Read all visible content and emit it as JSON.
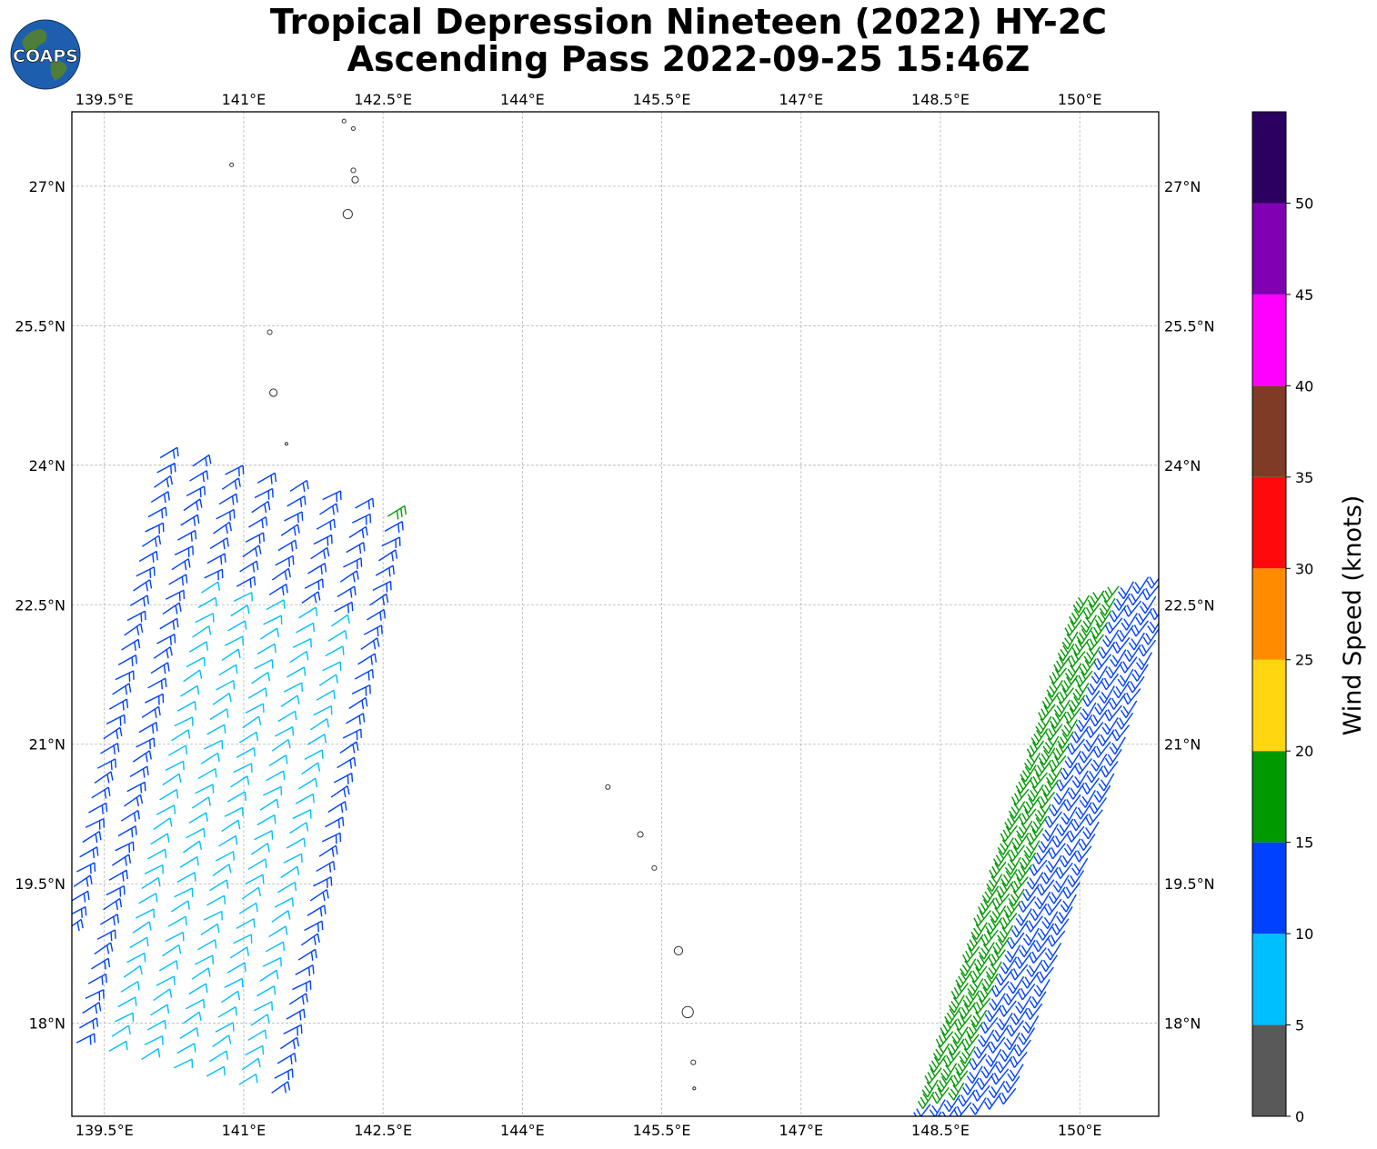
{
  "title": {
    "line1": "Tropical Depression Nineteen (2022) HY-2C",
    "line2": "Ascending Pass 2022-09-25 15:46Z"
  },
  "logo": {
    "text": "COAPS",
    "ocean_color": "#1d5fae",
    "land_color": "#4f7d3a"
  },
  "map": {
    "lon_range": [
      139.15,
      150.85
    ],
    "lat_range": [
      17.0,
      27.8
    ],
    "lon_ticks": [
      {
        "value": 139.5,
        "label": "139.5°E"
      },
      {
        "value": 141.0,
        "label": "141°E"
      },
      {
        "value": 142.5,
        "label": "142.5°E"
      },
      {
        "value": 144.0,
        "label": "144°E"
      },
      {
        "value": 145.5,
        "label": "145.5°E"
      },
      {
        "value": 147.0,
        "label": "147°E"
      },
      {
        "value": 148.5,
        "label": "148.5°E"
      },
      {
        "value": 150.0,
        "label": "150°E"
      }
    ],
    "lat_ticks": [
      {
        "value": 27.0,
        "label": "27°N"
      },
      {
        "value": 25.5,
        "label": "25.5°N"
      },
      {
        "value": 24.0,
        "label": "24°N"
      },
      {
        "value": 22.5,
        "label": "22.5°N"
      },
      {
        "value": 21.0,
        "label": "21°N"
      },
      {
        "value": 19.5,
        "label": "19.5°N"
      },
      {
        "value": 18.0,
        "label": "18°N"
      }
    ],
    "grid": true,
    "islands": [
      {
        "lon": 142.08,
        "lat": 27.7,
        "r": 0.02
      },
      {
        "lon": 142.18,
        "lat": 27.62,
        "r": 0.02
      },
      {
        "lon": 140.87,
        "lat": 27.23,
        "r": 0.02
      },
      {
        "lon": 142.18,
        "lat": 27.17,
        "r": 0.025
      },
      {
        "lon": 142.2,
        "lat": 27.07,
        "r": 0.035
      },
      {
        "lon": 142.12,
        "lat": 26.7,
        "r": 0.05
      },
      {
        "lon": 141.28,
        "lat": 25.43,
        "r": 0.025
      },
      {
        "lon": 141.32,
        "lat": 24.78,
        "r": 0.04
      },
      {
        "lon": 141.46,
        "lat": 24.23,
        "r": 0.015
      },
      {
        "lon": 144.92,
        "lat": 20.54,
        "r": 0.025
      },
      {
        "lon": 145.27,
        "lat": 20.03,
        "r": 0.03
      },
      {
        "lon": 145.42,
        "lat": 19.67,
        "r": 0.025
      },
      {
        "lon": 145.68,
        "lat": 18.78,
        "r": 0.045
      },
      {
        "lon": 145.78,
        "lat": 18.12,
        "r": 0.06
      },
      {
        "lon": 145.84,
        "lat": 17.58,
        "r": 0.025
      },
      {
        "lon": 145.85,
        "lat": 17.3,
        "r": 0.015
      }
    ]
  },
  "wind_swaths": [
    {
      "name": "west",
      "edge_start": {
        "lon": 141.3,
        "lat": 17.25
      },
      "edge_end": {
        "lon": 142.55,
        "lat": 23.45
      },
      "cross": {
        "dlon": -0.35,
        "dlat": 0.09
      },
      "rows": 40,
      "cols": 8,
      "direction_deg": 60
    },
    {
      "name": "east",
      "edge_start": {
        "lon": 148.35,
        "lat": 17.0
      },
      "edge_end": {
        "lon": 150.1,
        "lat": 22.6
      },
      "cross": {
        "dlon": 0.16,
        "dlat": 0.05
      },
      "rows": 44,
      "cols": 7,
      "direction_deg": 215
    }
  ],
  "colorbar": {
    "label": "Wind Speed (knots)",
    "range": [
      0,
      55
    ],
    "bins": [
      {
        "from": 0,
        "to": 5,
        "color": "#595959"
      },
      {
        "from": 5,
        "to": 10,
        "color": "#00bfff"
      },
      {
        "from": 10,
        "to": 15,
        "color": "#0040ff"
      },
      {
        "from": 15,
        "to": 20,
        "color": "#009900"
      },
      {
        "from": 20,
        "to": 25,
        "color": "#ffd60f"
      },
      {
        "from": 25,
        "to": 30,
        "color": "#ff8c00"
      },
      {
        "from": 30,
        "to": 35,
        "color": "#ff0a0a"
      },
      {
        "from": 35,
        "to": 40,
        "color": "#7f3b26"
      },
      {
        "from": 40,
        "to": 45,
        "color": "#ff00ff"
      },
      {
        "from": 45,
        "to": 50,
        "color": "#8000b3"
      },
      {
        "from": 50,
        "to": 55,
        "color": "#2b0060"
      }
    ],
    "tick_labels": [
      "0",
      "5",
      "10",
      "15",
      "20",
      "25",
      "30",
      "35",
      "40",
      "45",
      "50"
    ],
    "barb_colors": {
      "calm": "#00bfff",
      "moderate": "#0040ff",
      "strong": "#009900"
    }
  }
}
